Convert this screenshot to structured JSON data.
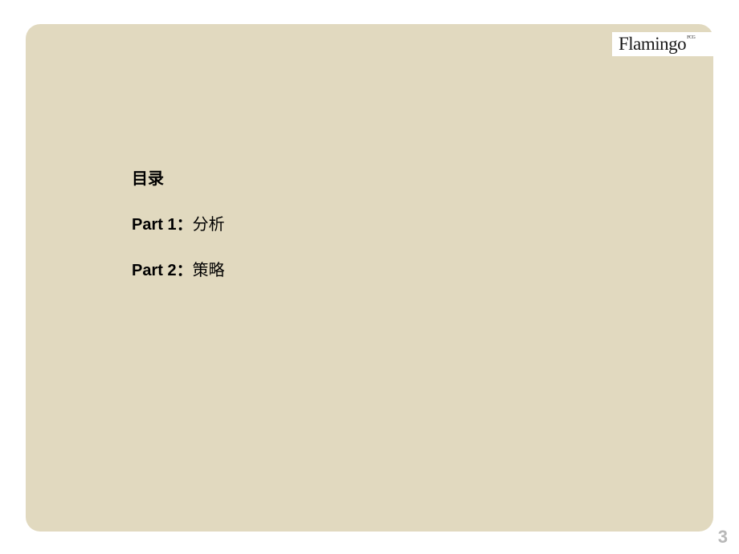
{
  "slide": {
    "background_color": "#e1d9bf",
    "border_radius": 18
  },
  "logo": {
    "text": "Flamingo",
    "superscript": "FCG",
    "background_color": "#ffffff",
    "text_color": "#1a1a1a"
  },
  "toc": {
    "title": "目录",
    "items": [
      {
        "part": "Part 1",
        "colon": "：",
        "label": "分析"
      },
      {
        "part": "Part 2",
        "colon": "：",
        "label": "策略"
      }
    ]
  },
  "page_number": "3",
  "colors": {
    "page_bg": "#ffffff",
    "slide_bg": "#e1d9bf",
    "text": "#000000",
    "page_number": "#b8b8b8"
  }
}
